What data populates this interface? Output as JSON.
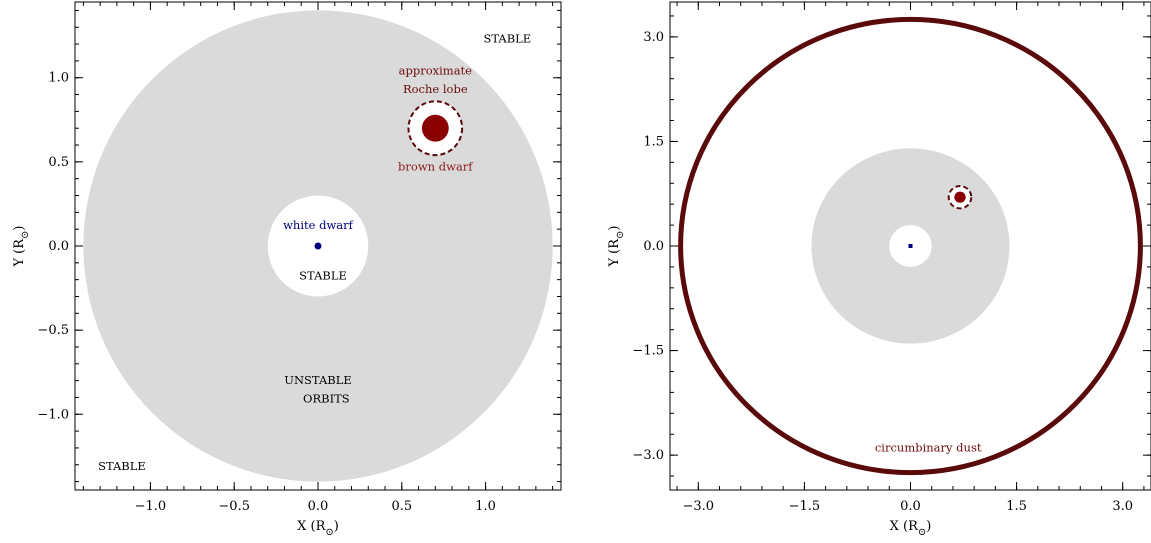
{
  "chart_data": [
    {
      "type": "scatter",
      "xlabel": "X (R",
      "ylabel": "Y (R",
      "label_sub": "⊙",
      "label_close": ")",
      "xlim": [
        -1.45,
        1.45
      ],
      "ylim": [
        -1.45,
        1.45
      ],
      "xticks": [
        -1.0,
        -0.5,
        0.0,
        0.5,
        1.0
      ],
      "yticks": [
        -1.0,
        -0.5,
        0.0,
        0.5,
        1.0
      ],
      "xtick_labels": [
        "−1.0",
        "−0.5",
        "0.0",
        "0.5",
        "1.0"
      ],
      "ytick_labels": [
        "−1.0",
        "−0.5",
        "0.0",
        "0.5",
        "1.0"
      ],
      "unstable_region": {
        "inner_radius": 0.3,
        "outer_radius": 1.4,
        "color": "#dadada"
      },
      "white_dwarf": {
        "x": 0.0,
        "y": 0.0,
        "radius": 0.02,
        "color": "#00007f"
      },
      "brown_dwarf": {
        "x": 0.7,
        "y": 0.7,
        "radius": 0.08,
        "color": "#8b0000"
      },
      "roche_lobe": {
        "x": 0.7,
        "y": 0.7,
        "radius": 0.16,
        "color": "#5a0a0a"
      },
      "annotations": [
        {
          "text": "approximate",
          "x": 0.7,
          "y": 1.02,
          "color": "#6a0a0a"
        },
        {
          "text": "Roche lobe",
          "x": 0.7,
          "y": 0.91,
          "color": "#6a0a0a"
        },
        {
          "text": "brown dwarf",
          "x": 0.7,
          "y": 0.45,
          "color": "#8b1a1a"
        },
        {
          "text": "white dwarf",
          "x": 0.0,
          "y": 0.1,
          "color": "#00007f"
        },
        {
          "text": "STABLE",
          "x": 0.03,
          "y": -0.2,
          "color": "#000000"
        },
        {
          "text": "UNSTABLE",
          "x": 0.0,
          "y": -0.82,
          "color": "#000000"
        },
        {
          "text": "ORBITS",
          "x": 0.05,
          "y": -0.93,
          "color": "#000000"
        },
        {
          "text": "STABLE",
          "x": 1.13,
          "y": 1.21,
          "color": "#000000"
        },
        {
          "text": "STABLE",
          "x": -1.17,
          "y": -1.33,
          "color": "#000000"
        }
      ]
    },
    {
      "type": "scatter",
      "xlabel": "X (R",
      "ylabel": "Y (R",
      "label_sub": "⊙",
      "label_close": ")",
      "xlim": [
        -3.4,
        3.4
      ],
      "ylim": [
        -3.5,
        3.5
      ],
      "xticks": [
        -3.0,
        -1.5,
        0.0,
        1.5,
        3.0
      ],
      "yticks": [
        -3.0,
        -1.5,
        0.0,
        1.5,
        3.0
      ],
      "xtick_labels": [
        "−3.0",
        "−1.5",
        "0.0",
        "1.5",
        "3.0"
      ],
      "ytick_labels": [
        "−3.0",
        "−1.5",
        "0.0",
        "1.5",
        "3.0"
      ],
      "unstable_region": {
        "inner_radius": 0.3,
        "outer_radius": 1.4,
        "color": "#dadada"
      },
      "white_dwarf": {
        "x": 0.0,
        "y": 0.0,
        "radius": 0.025,
        "color": "#00007f"
      },
      "brown_dwarf": {
        "x": 0.7,
        "y": 0.7,
        "radius": 0.08,
        "color": "#8b0000"
      },
      "roche_lobe": {
        "x": 0.7,
        "y": 0.7,
        "radius": 0.16,
        "color": "#5a0a0a"
      },
      "dust_ring": {
        "radius": 3.25,
        "color": "#5a0a0a"
      },
      "annotations": [
        {
          "text": "circumbinary dust",
          "x": 0.25,
          "y": -2.95,
          "color": "#6a0a0a"
        }
      ]
    }
  ]
}
